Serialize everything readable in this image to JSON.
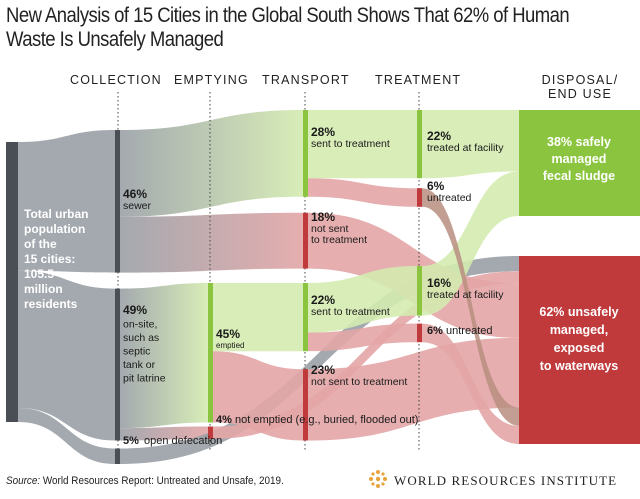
{
  "title_lines": [
    "New Analysis of 15 Cities in the Global South Shows That 62% of Human",
    "Waste Is Unsafely Managed"
  ],
  "stages": [
    "COLLECTION",
    "EMPTYING",
    "TRANSPORT",
    "TREATMENT"
  ],
  "disposal_label": [
    "DISPOSAL/",
    "END USE"
  ],
  "population": {
    "lines": [
      "Total urban",
      "population",
      "of the",
      "15 cities:",
      "105.5",
      "million",
      "residents"
    ]
  },
  "source": {
    "prefix": "Source:",
    "text": " World Resources Report: Untreated and Unsafe, 2019."
  },
  "publisher": "WORLD RESOURCES INSTITUTE",
  "colors": {
    "safe": "#8bc53f",
    "unsafe": "#c0393b",
    "total": "#4a4f55",
    "safe_band": "#d4ebb0",
    "unsafe_band": "#e3a5a6",
    "neutral_band": "#9aa0a6",
    "untreated_band": "#b88e80"
  },
  "chart_data": {
    "type": "sankey",
    "title": "New Analysis of 15 Cities in the Global South Shows That 62% of Human Waste Is Unsafely Managed",
    "units": "% of total urban population (105.5 million residents, 15 cities)",
    "nodes": [
      {
        "id": "total",
        "stage": "source",
        "lines": [
          "Total urban",
          "population",
          "of the",
          "15 cities:",
          "105.5",
          "million",
          "residents"
        ]
      },
      {
        "id": "sewer",
        "stage": "collection",
        "value": 46,
        "pct": "46%",
        "lines": [
          "sewer"
        ]
      },
      {
        "id": "onsite",
        "stage": "collection",
        "value": 49,
        "pct": "49%",
        "lines": [
          "on-site,",
          "such as",
          "septic",
          "tank or",
          "pit latrine"
        ]
      },
      {
        "id": "open",
        "stage": "collection",
        "value": 5,
        "pct": "5%",
        "lines": [
          "open defecation"
        ]
      },
      {
        "id": "emptied",
        "stage": "emptying",
        "value": 45,
        "pct": "45%",
        "lines": [
          "emptied"
        ]
      },
      {
        "id": "not_emptied",
        "stage": "emptying",
        "value": 4,
        "pct": "4%",
        "lines": [
          "not emptied (e.g., buried, flooded out)"
        ]
      },
      {
        "id": "sewer_sent",
        "stage": "transport",
        "value": 28,
        "pct": "28%",
        "lines": [
          "sent to treatment"
        ]
      },
      {
        "id": "sewer_not_sent",
        "stage": "transport",
        "value": 18,
        "pct": "18%",
        "lines": [
          "not sent",
          "to treatment"
        ]
      },
      {
        "id": "fs_sent",
        "stage": "transport",
        "value": 22,
        "pct": "22%",
        "lines": [
          "sent to treatment"
        ]
      },
      {
        "id": "fs_not_sent",
        "stage": "transport",
        "value": 23,
        "pct": "23%",
        "lines": [
          "not sent to treatment"
        ]
      },
      {
        "id": "sewer_treated",
        "stage": "treatment",
        "value": 22,
        "pct": "22%",
        "lines": [
          "treated at facility"
        ]
      },
      {
        "id": "sewer_untreated",
        "stage": "treatment",
        "value": 6,
        "pct": "6%",
        "lines": [
          "untreated"
        ]
      },
      {
        "id": "fs_treated",
        "stage": "treatment",
        "value": 16,
        "pct": "16%",
        "lines": [
          "treated at facility"
        ]
      },
      {
        "id": "fs_untreated",
        "stage": "treatment",
        "value": 6,
        "pct": "6%",
        "lines": [
          "untreated"
        ]
      },
      {
        "id": "safe",
        "stage": "disposal",
        "value": 38,
        "lines": [
          "38% safely",
          "managed",
          "fecal sludge"
        ]
      },
      {
        "id": "unsafe",
        "stage": "disposal",
        "value": 62,
        "lines": [
          "62% unsafely",
          "managed,",
          "exposed",
          "to waterways"
        ]
      }
    ],
    "links": [
      {
        "source": "total",
        "target": "sewer",
        "value": 46,
        "kind": "neutral"
      },
      {
        "source": "total",
        "target": "onsite",
        "value": 49,
        "kind": "neutral"
      },
      {
        "source": "total",
        "target": "open",
        "value": 5,
        "kind": "neutral"
      },
      {
        "source": "sewer",
        "target": "sewer_sent",
        "value": 28,
        "kind": "safe"
      },
      {
        "source": "sewer",
        "target": "sewer_not_sent",
        "value": 18,
        "kind": "unsafe"
      },
      {
        "source": "onsite",
        "target": "emptied",
        "value": 45,
        "kind": "safe"
      },
      {
        "source": "onsite",
        "target": "not_emptied",
        "value": 4,
        "kind": "unsafe"
      },
      {
        "source": "open",
        "target": "unsafe",
        "value": 5,
        "kind": "neutral"
      },
      {
        "source": "emptied",
        "target": "fs_sent",
        "value": 22,
        "kind": "safe"
      },
      {
        "source": "emptied",
        "target": "fs_not_sent",
        "value": 23,
        "kind": "unsafe"
      },
      {
        "source": "not_emptied",
        "target": "unsafe",
        "value": 4,
        "kind": "unsafe"
      },
      {
        "source": "sewer_sent",
        "target": "sewer_treated",
        "value": 22,
        "kind": "safe"
      },
      {
        "source": "sewer_sent",
        "target": "sewer_untreated",
        "value": 6,
        "kind": "unsafe"
      },
      {
        "source": "sewer_not_sent",
        "target": "unsafe",
        "value": 18,
        "kind": "unsafe"
      },
      {
        "source": "fs_sent",
        "target": "fs_treated",
        "value": 16,
        "kind": "safe"
      },
      {
        "source": "fs_sent",
        "target": "fs_untreated",
        "value": 6,
        "kind": "unsafe"
      },
      {
        "source": "fs_not_sent",
        "target": "unsafe",
        "value": 23,
        "kind": "unsafe"
      },
      {
        "source": "sewer_treated",
        "target": "safe",
        "value": 22,
        "kind": "safe"
      },
      {
        "source": "fs_treated",
        "target": "safe",
        "value": 16,
        "kind": "safe"
      },
      {
        "source": "sewer_untreated",
        "target": "unsafe",
        "value": 6,
        "kind": "untreated"
      },
      {
        "source": "fs_untreated",
        "target": "unsafe",
        "value": 6,
        "kind": "unsafe"
      }
    ]
  }
}
